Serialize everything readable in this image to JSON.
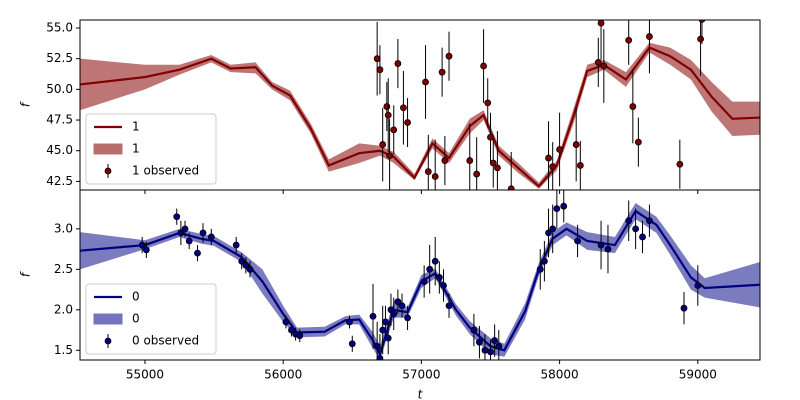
{
  "chart_data": [
    {
      "type": "line",
      "ylabel": "f",
      "xlim": [
        54530,
        59450
      ],
      "ylim": [
        41.8,
        55.65
      ],
      "yticks": [
        42.5,
        {
          "value": 45,
          "label": "45.0"
        },
        47.5,
        {
          "value": 50,
          "label": "50.0"
        },
        52.5,
        {
          "value": 55,
          "label": "55.0"
        }
      ],
      "legend": "lower left",
      "x": [
        54530,
        55000,
        55250,
        55480,
        55620,
        55800,
        55920,
        56050,
        56200,
        56330,
        56550,
        56700,
        56800,
        56950,
        57080,
        57200,
        57350,
        57450,
        57560,
        57700,
        57850,
        57980,
        58100,
        58200,
        58320,
        58480,
        58650,
        58800,
        58950,
        59100,
        59250,
        59450
      ],
      "series": [
        {
          "name": "1",
          "color": "#800000",
          "values": [
            50.4,
            51.0,
            51.6,
            52.5,
            51.7,
            51.8,
            50.3,
            49.5,
            46.8,
            43.8,
            44.8,
            45.0,
            44.5,
            42.8,
            45.6,
            44.4,
            47.0,
            47.9,
            45.0,
            43.6,
            42.1,
            43.8,
            47.8,
            51.5,
            52.0,
            50.8,
            53.4,
            52.7,
            51.6,
            49.4,
            47.6,
            47.7
          ]
        }
      ],
      "band": {
        "name": "1",
        "color": "#b96e6e",
        "lower": [
          48.3,
          50.0,
          51.2,
          52.2,
          51.4,
          51.3,
          50.0,
          49.1,
          46.4,
          43.3,
          44.0,
          44.6,
          44.0,
          42.6,
          45.2,
          44.0,
          46.4,
          47.5,
          44.6,
          43.2,
          41.9,
          43.4,
          47.2,
          51.0,
          51.6,
          50.2,
          53.0,
          52.0,
          50.8,
          48.2,
          46.2,
          46.3
        ],
        "upper": [
          52.5,
          52.0,
          52.0,
          52.8,
          52.0,
          52.2,
          50.6,
          49.9,
          47.2,
          44.3,
          45.6,
          45.4,
          44.9,
          43.1,
          46.0,
          44.8,
          47.6,
          48.3,
          45.4,
          44.0,
          42.4,
          44.2,
          48.4,
          52.0,
          52.4,
          51.4,
          53.8,
          53.4,
          52.4,
          50.6,
          49.0,
          49.0
        ]
      },
      "observed": {
        "name": "1 observed",
        "color": "#800000",
        "x": [
          56680,
          56700,
          56720,
          56750,
          56760,
          56770,
          56800,
          56830,
          56870,
          56900,
          57030,
          57050,
          57100,
          57150,
          57170,
          57200,
          57350,
          57400,
          57450,
          57480,
          57500,
          57520,
          57550,
          57650,
          57920,
          57950,
          58000,
          58120,
          58150,
          58280,
          58300,
          58320,
          58500,
          58530,
          58570,
          58650,
          58870,
          59020,
          59030
        ],
        "values": [
          52.5,
          51.6,
          45.5,
          48.6,
          47.9,
          44.6,
          46.7,
          52.1,
          48.5,
          47.3,
          50.6,
          43.3,
          42.9,
          51.4,
          44.2,
          52.7,
          44.2,
          43.1,
          51.9,
          48.9,
          46.1,
          44.0,
          43.6,
          41.9,
          44.4,
          43.7,
          45.1,
          45.5,
          43.8,
          52.2,
          55.4,
          51.9,
          54.0,
          48.6,
          45.7,
          54.3,
          43.9,
          54.1,
          55.7
        ],
        "errors": [
          3,
          2,
          3,
          2,
          3,
          3,
          2,
          2,
          3,
          2,
          3,
          3,
          3,
          2,
          2,
          2,
          3,
          3,
          3,
          2,
          2,
          2,
          3,
          3,
          3,
          2,
          3,
          3,
          2,
          2,
          3,
          3,
          2,
          3,
          2,
          3,
          2,
          3,
          2
        ]
      }
    },
    {
      "type": "line",
      "ylabel": "f",
      "xlabel": "t",
      "xlim": [
        54530,
        59450
      ],
      "ylim": [
        1.38,
        3.48
      ],
      "xticks": [
        55000,
        56000,
        57000,
        58000,
        59000
      ],
      "yticks": [
        1.5,
        {
          "value": 2,
          "label": "2.0"
        },
        2.5,
        {
          "value": 3,
          "label": "3.0"
        }
      ],
      "legend": "lower left",
      "x": [
        54530,
        55000,
        55250,
        55400,
        55500,
        55700,
        55850,
        56000,
        56100,
        56300,
        56450,
        56550,
        56650,
        56700,
        56800,
        56900,
        57000,
        57100,
        57250,
        57350,
        57500,
        57600,
        57750,
        57850,
        57950,
        58050,
        58200,
        58400,
        58550,
        58700,
        58800,
        58950,
        59050,
        59450
      ],
      "series": [
        {
          "name": "0",
          "color": "#000080",
          "values": [
            2.73,
            2.8,
            2.95,
            2.88,
            2.85,
            2.65,
            2.35,
            1.95,
            1.72,
            1.73,
            1.87,
            1.88,
            1.62,
            1.45,
            2.0,
            1.97,
            2.35,
            2.45,
            2.0,
            1.78,
            1.55,
            1.5,
            1.98,
            2.5,
            2.88,
            3.0,
            2.85,
            2.8,
            3.22,
            3.05,
            2.8,
            2.4,
            2.27,
            2.31
          ]
        }
      ],
      "band": {
        "name": "0",
        "color": "#7474bd",
        "lower": [
          2.5,
          2.75,
          2.9,
          2.82,
          2.79,
          2.59,
          2.2,
          1.85,
          1.66,
          1.67,
          1.82,
          1.82,
          1.52,
          1.38,
          1.9,
          1.91,
          2.27,
          2.39,
          1.93,
          1.7,
          1.45,
          1.42,
          1.88,
          2.42,
          2.8,
          2.92,
          2.74,
          2.7,
          3.12,
          2.95,
          2.68,
          2.25,
          2.15,
          2.03
        ],
        "upper": [
          2.96,
          2.86,
          3.0,
          2.94,
          2.91,
          2.71,
          2.5,
          2.05,
          1.78,
          1.79,
          1.92,
          1.94,
          1.72,
          1.55,
          2.1,
          2.03,
          2.43,
          2.51,
          2.07,
          1.86,
          1.65,
          1.58,
          2.08,
          2.58,
          2.96,
          3.08,
          2.96,
          2.9,
          3.32,
          3.15,
          2.92,
          2.55,
          2.39,
          2.59
        ]
      },
      "observed": {
        "name": "0 observed",
        "color": "#000080",
        "x": [
          54980,
          55010,
          55230,
          55260,
          55290,
          55320,
          55380,
          55420,
          55480,
          55660,
          55700,
          55730,
          55760,
          56020,
          56060,
          56090,
          56120,
          56480,
          56500,
          56650,
          56680,
          56700,
          56720,
          56740,
          56760,
          56780,
          56800,
          56830,
          56860,
          56900,
          57020,
          57060,
          57100,
          57130,
          57160,
          57200,
          57380,
          57420,
          57460,
          57500,
          57530,
          57560,
          57860,
          57890,
          57920,
          57950,
          57980,
          58030,
          58130,
          58300,
          58350,
          58500,
          58550,
          58600,
          58650,
          58900,
          59000
        ],
        "values": [
          2.8,
          2.74,
          3.15,
          2.95,
          3.0,
          2.85,
          2.7,
          2.95,
          2.9,
          2.8,
          2.6,
          2.55,
          2.5,
          1.85,
          1.75,
          1.7,
          1.68,
          1.85,
          1.58,
          1.92,
          1.55,
          1.4,
          1.75,
          1.85,
          1.65,
          2.0,
          1.95,
          2.1,
          2.05,
          1.9,
          2.35,
          2.5,
          2.6,
          2.4,
          2.3,
          2.05,
          1.75,
          1.6,
          1.5,
          1.48,
          1.62,
          1.55,
          2.5,
          2.6,
          2.95,
          3.0,
          3.25,
          3.28,
          2.85,
          2.8,
          2.75,
          3.1,
          3.0,
          2.9,
          3.1,
          2.02,
          2.3
        ],
        "errors": [
          0.1,
          0.1,
          0.1,
          0.15,
          0.1,
          0.1,
          0.1,
          0.12,
          0.1,
          0.1,
          0.1,
          0.1,
          0.1,
          0.08,
          0.08,
          0.08,
          0.08,
          0.08,
          0.1,
          0.4,
          0.3,
          0.3,
          0.3,
          0.2,
          0.2,
          0.2,
          0.2,
          0.15,
          0.15,
          0.15,
          0.2,
          0.3,
          0.3,
          0.2,
          0.2,
          0.15,
          0.2,
          0.2,
          0.2,
          0.15,
          0.2,
          0.2,
          0.25,
          0.25,
          0.3,
          0.3,
          0.25,
          0.2,
          0.2,
          0.3,
          0.3,
          0.25,
          0.25,
          0.2,
          0.2,
          0.2,
          0.25
        ]
      }
    }
  ]
}
